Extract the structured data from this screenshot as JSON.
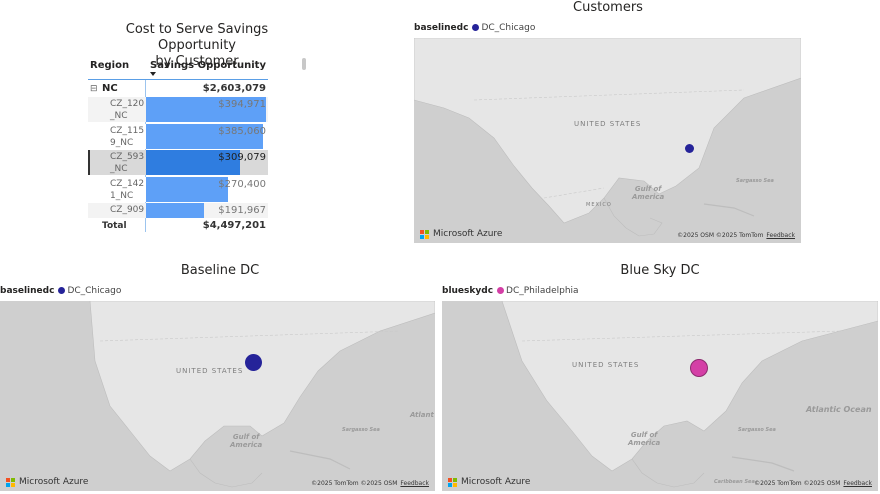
{
  "table": {
    "title_line1": "Cost to Serve Savings Opportunity",
    "title_line2": "by Customer",
    "col_region": "Region",
    "col_savings": "Savings Opportunity",
    "group": {
      "expander": "⊟",
      "label": "NC",
      "value": "$2,603,079"
    },
    "rows": [
      {
        "line1": "CZ_120",
        "line2": "_NC",
        "value": "$394,971",
        "fraction": 1.0
      },
      {
        "line1": "CZ_115",
        "line2": "9_NC",
        "value": "$385,060",
        "fraction": 0.975
      },
      {
        "line1": "CZ_593",
        "line2": "_NC",
        "value": "$309,079",
        "fraction": 0.783
      },
      {
        "line1": "CZ_142",
        "line2": "1_NC",
        "value": "$270,400",
        "fraction": 0.685
      },
      {
        "line1": "CZ_909",
        "line2": "",
        "value": "$191,967",
        "fraction": 0.486
      }
    ],
    "total_label": "Total",
    "total_value": "$4,497,201"
  },
  "maps": {
    "customers": {
      "title": "Customers",
      "legend_field": "baselinedc",
      "legend_item": "DC_Chicago",
      "dot_color": "#252399"
    },
    "baseline": {
      "title": "Baseline DC",
      "legend_field": "baselinedc",
      "legend_item": "DC_Chicago",
      "dot_color": "#252399"
    },
    "bluesky": {
      "title": "Blue Sky DC",
      "legend_field": "blueskydc",
      "legend_item": "DC_Philadelphia",
      "dot_color": "#d43fa6"
    }
  },
  "map_labels": {
    "us": "UNITED STATES",
    "mexico": "MEXICO",
    "gulf1": "Gulf of",
    "gulf2": "America",
    "sargasso": "Sargasso Sea",
    "atlantic": "Atlantic Ocean",
    "atlantic_cut": "Atlant",
    "caribbean": "Caribbean Sea"
  },
  "branding": {
    "ms_azure": "Microsoft Azure",
    "copyright1": "©2025 OSM ©2025 TomTom",
    "copyright2": "©2025 TomTom ©2025 OSM",
    "feedback": "Feedback"
  },
  "colors": {
    "bar": "#5ea0f7",
    "bar_selected": "#2f7de0",
    "map_bg": "#cfcfcf",
    "land": "#e6e6e6"
  }
}
